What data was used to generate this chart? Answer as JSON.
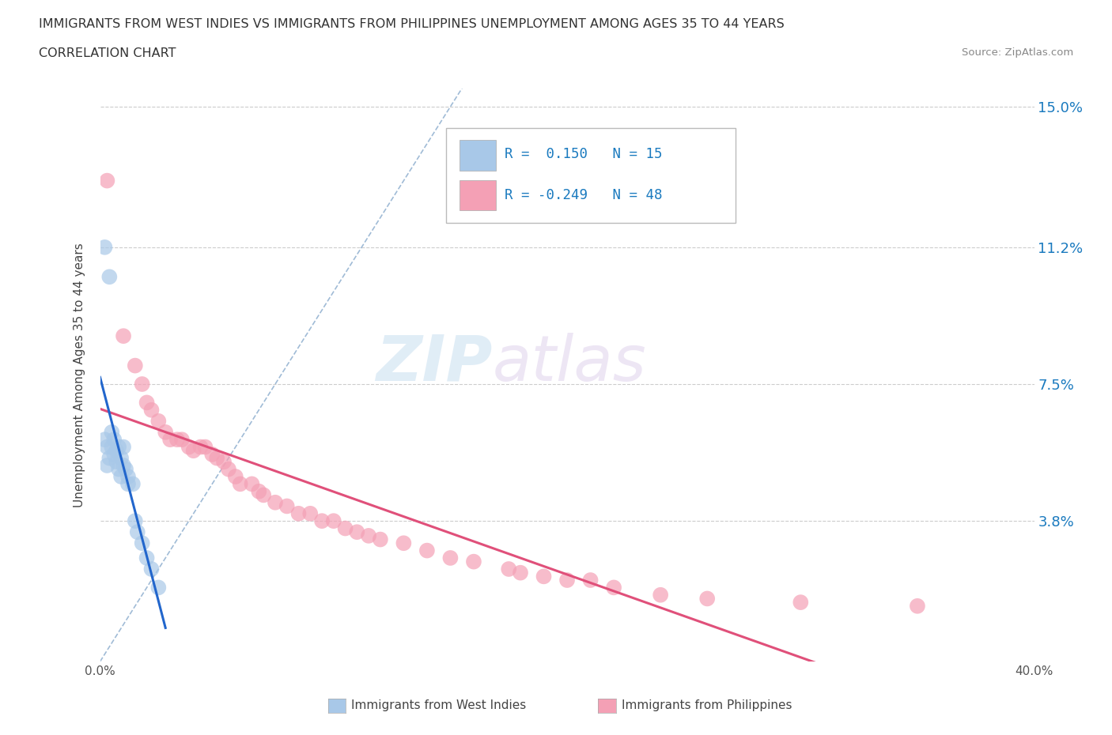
{
  "title_line1": "IMMIGRANTS FROM WEST INDIES VS IMMIGRANTS FROM PHILIPPINES UNEMPLOYMENT AMONG AGES 35 TO 44 YEARS",
  "title_line2": "CORRELATION CHART",
  "source": "Source: ZipAtlas.com",
  "ylabel": "Unemployment Among Ages 35 to 44 years",
  "xlim": [
    0.0,
    0.4
  ],
  "ylim": [
    0.0,
    0.155
  ],
  "ytick_labels_right": [
    "3.8%",
    "7.5%",
    "11.2%",
    "15.0%"
  ],
  "ytick_vals_right": [
    0.038,
    0.075,
    0.112,
    0.15
  ],
  "color_blue": "#a8c8e8",
  "color_pink": "#f4a0b5",
  "color_blue_line": "#2266cc",
  "color_pink_line": "#e0507a",
  "color_dash": "#88aacc",
  "watermark_zip": "ZIP",
  "watermark_atlas": "atlas",
  "west_indies_x": [
    0.002,
    0.004,
    0.002,
    0.003,
    0.003,
    0.004,
    0.005,
    0.005,
    0.006,
    0.006,
    0.007,
    0.007,
    0.008,
    0.008,
    0.009,
    0.009,
    0.01,
    0.01,
    0.011,
    0.012,
    0.012,
    0.014,
    0.015,
    0.016,
    0.018,
    0.02,
    0.022,
    0.025
  ],
  "west_indies_y": [
    0.112,
    0.104,
    0.06,
    0.058,
    0.053,
    0.055,
    0.062,
    0.058,
    0.06,
    0.056,
    0.057,
    0.054,
    0.058,
    0.052,
    0.055,
    0.05,
    0.058,
    0.053,
    0.052,
    0.05,
    0.048,
    0.048,
    0.038,
    0.035,
    0.032,
    0.028,
    0.025,
    0.02
  ],
  "philippines_x": [
    0.003,
    0.01,
    0.015,
    0.018,
    0.02,
    0.022,
    0.025,
    0.028,
    0.03,
    0.033,
    0.035,
    0.038,
    0.04,
    0.043,
    0.045,
    0.048,
    0.05,
    0.053,
    0.055,
    0.058,
    0.06,
    0.065,
    0.068,
    0.07,
    0.075,
    0.08,
    0.085,
    0.09,
    0.095,
    0.1,
    0.105,
    0.11,
    0.115,
    0.12,
    0.13,
    0.14,
    0.15,
    0.16,
    0.175,
    0.18,
    0.19,
    0.2,
    0.21,
    0.22,
    0.24,
    0.26,
    0.3,
    0.35
  ],
  "philippines_y": [
    0.13,
    0.088,
    0.08,
    0.075,
    0.07,
    0.068,
    0.065,
    0.062,
    0.06,
    0.06,
    0.06,
    0.058,
    0.057,
    0.058,
    0.058,
    0.056,
    0.055,
    0.054,
    0.052,
    0.05,
    0.048,
    0.048,
    0.046,
    0.045,
    0.043,
    0.042,
    0.04,
    0.04,
    0.038,
    0.038,
    0.036,
    0.035,
    0.034,
    0.033,
    0.032,
    0.03,
    0.028,
    0.027,
    0.025,
    0.024,
    0.023,
    0.022,
    0.022,
    0.02,
    0.018,
    0.017,
    0.016,
    0.015
  ],
  "grid_color": "#cccccc",
  "bg_color": "#ffffff"
}
